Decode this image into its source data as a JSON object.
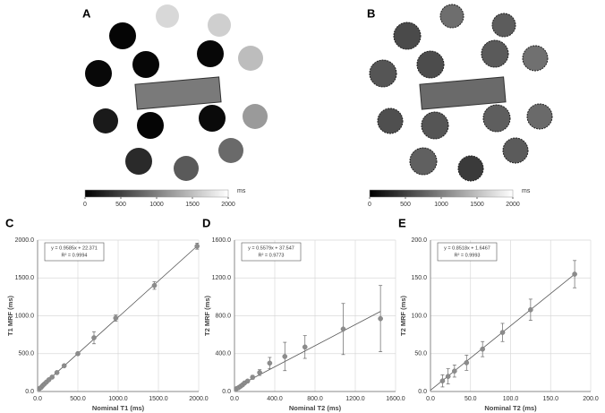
{
  "image_panels": [
    {
      "label": "A",
      "colorbar": {
        "ticks": [
          0,
          500,
          1000,
          1500,
          2000
        ],
        "unit": "ms"
      }
    },
    {
      "label": "B",
      "colorbar": {
        "ticks": [
          0,
          500,
          1000,
          1500,
          2000
        ],
        "unit": "ms"
      }
    }
  ],
  "chart_data": [
    {
      "type": "scatter",
      "panel": "C",
      "xlabel": "Nominal T1 (ms)",
      "ylabel": "T1 MRF (ms)",
      "x": [
        25,
        45,
        65,
        85,
        110,
        140,
        180,
        240,
        330,
        500,
        700,
        970,
        1450,
        1980
      ],
      "values": [
        40,
        55,
        80,
        100,
        125,
        155,
        190,
        250,
        340,
        500,
        710,
        970,
        1400,
        1920
      ],
      "errors": [
        5,
        5,
        5,
        5,
        5,
        5,
        8,
        10,
        15,
        20,
        80,
        40,
        50,
        40
      ],
      "color": "#8c8c8c",
      "fit": {
        "slope": 0.9585,
        "intercept": 22.371,
        "label": "y = 0.9585x + 22.371"
      },
      "r2_label": "R² = 0.9994",
      "xlim": [
        0,
        2000
      ],
      "ylim": [
        0,
        2000
      ],
      "xticks": [
        {
          "value": 0,
          "label": "0.0"
        },
        {
          "value": 500,
          "label": "500.0"
        },
        {
          "value": 1000,
          "label": "1000.0"
        },
        {
          "value": 1500,
          "label": "1500.0"
        },
        {
          "value": 2000,
          "label": "2000.0"
        }
      ],
      "yticks": [
        {
          "value": 0,
          "label": "0.0"
        },
        {
          "value": 500,
          "label": "500.0"
        },
        {
          "value": 1000,
          "label": "1000.0"
        },
        {
          "value": 1500,
          "label": "1500.0"
        },
        {
          "value": 2000,
          "label": "2000.0"
        }
      ],
      "grid": true
    },
    {
      "type": "scatter",
      "panel": "D",
      "xlabel": "Nominal T2 (ms)",
      "ylabel": "T2 MRF (ms)",
      "x": [
        20,
        40,
        60,
        80,
        100,
        130,
        180,
        250,
        350,
        500,
        700,
        1080,
        1450
      ],
      "values": [
        30,
        40,
        55,
        70,
        90,
        110,
        150,
        200,
        300,
        370,
        470,
        660,
        770
      ],
      "errors": [
        5,
        5,
        5,
        5,
        8,
        10,
        20,
        30,
        60,
        150,
        120,
        270,
        350
      ],
      "color": "#8c8c8c",
      "fit": {
        "slope": 0.5579,
        "intercept": 37.547,
        "label": "y = 0.5579x + 37.547"
      },
      "r2_label": "R² = 0.9773",
      "xlim": [
        0,
        1600
      ],
      "ylim": [
        0,
        1600
      ],
      "xticks": [
        {
          "value": 0,
          "label": "0.0"
        },
        {
          "value": 400,
          "label": "400.0"
        },
        {
          "value": 800,
          "label": "800.0"
        },
        {
          "value": 1200,
          "label": "1200.0"
        },
        {
          "value": 1600,
          "label": "1600.0"
        }
      ],
      "yticks": [
        {
          "value": 0,
          "label": "0.0"
        },
        {
          "value": 400,
          "label": "400.0"
        },
        {
          "value": 800,
          "label": "800.0"
        },
        {
          "value": 1200,
          "label": "1200.0"
        },
        {
          "value": 1600,
          "label": "1600.0"
        }
      ],
      "grid": true
    },
    {
      "type": "scatter",
      "panel": "E",
      "xlabel": "Nominal T2 (ms)",
      "ylabel": "T2 MRF (ms)",
      "x": [
        15,
        22,
        30,
        45,
        65,
        90,
        125,
        180
      ],
      "values": [
        14,
        20,
        27,
        38,
        56,
        78,
        108,
        155
      ],
      "errors": [
        8,
        10,
        8,
        10,
        10,
        12,
        14,
        18
      ],
      "color": "#8c8c8c",
      "fit": {
        "slope": 0.8518,
        "intercept": 1.6467,
        "label": "y = 0.8518x + 1.6467"
      },
      "r2_label": "R² = 0.9993",
      "xlim": [
        0,
        200
      ],
      "ylim": [
        0,
        200
      ],
      "xticks": [
        {
          "value": 0,
          "label": "0.0"
        },
        {
          "value": 50,
          "label": "50.0"
        },
        {
          "value": 100,
          "label": "100.0"
        },
        {
          "value": 150,
          "label": "150.0"
        },
        {
          "value": 200,
          "label": "200.0"
        }
      ],
      "yticks": [
        {
          "value": 0,
          "label": "0.0"
        },
        {
          "value": 50,
          "label": "50.0"
        },
        {
          "value": 100,
          "label": "100.0"
        },
        {
          "value": 150,
          "label": "150.0"
        },
        {
          "value": 200,
          "label": "200.0"
        }
      ],
      "grid": true
    }
  ]
}
